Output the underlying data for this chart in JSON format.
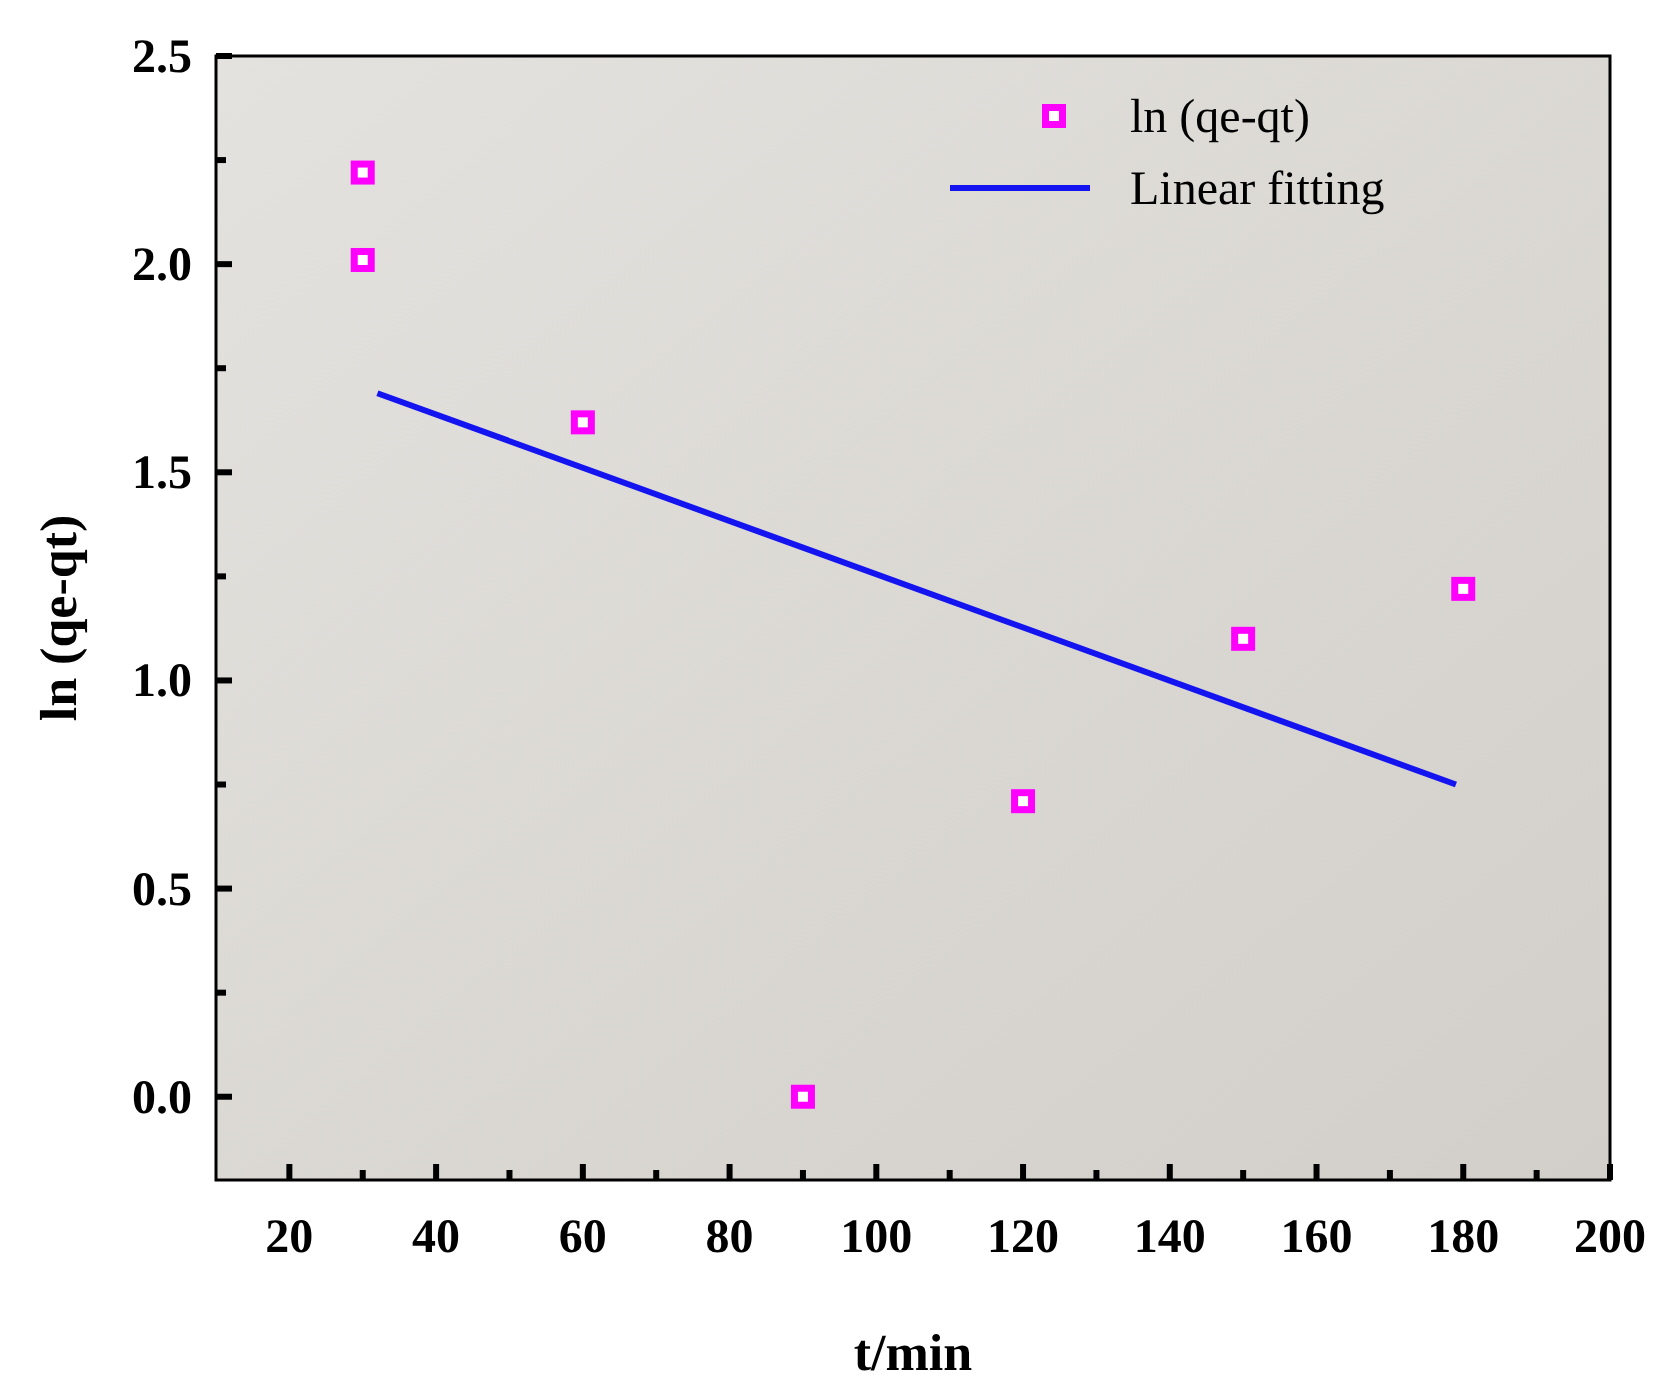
{
  "chart_data": {
    "type": "scatter",
    "xlabel": "t/min",
    "ylabel": "ln (qe-qt)",
    "xlim": [
      10,
      200
    ],
    "ylim": [
      -0.2,
      2.5
    ],
    "xticks": [
      20,
      40,
      60,
      80,
      100,
      120,
      140,
      160,
      180,
      200
    ],
    "yticks": [
      {
        "value": 0,
        "label": "0.0"
      },
      {
        "value": 0.5,
        "label": "0.5"
      },
      {
        "value": 1,
        "label": "1.0"
      },
      {
        "value": 1.5,
        "label": "1.5"
      },
      {
        "value": 2,
        "label": "2.0"
      },
      {
        "value": 2.5,
        "label": "2.5"
      }
    ],
    "grid": false,
    "legend": "top right",
    "series": [
      {
        "name": "ln (qe-qt)",
        "marker": "square",
        "color": "#ff00ff",
        "x": [
          30,
          30,
          60,
          90,
          120,
          150,
          180
        ],
        "values": [
          2.22,
          2.01,
          1.62,
          0.0,
          0.71,
          1.1,
          1.22
        ]
      },
      {
        "name": "Linear fitting",
        "type": "line",
        "line_style": "solid",
        "color": "#1414f0",
        "x": [
          32,
          179
        ],
        "values": [
          1.69,
          0.75
        ]
      }
    ]
  }
}
